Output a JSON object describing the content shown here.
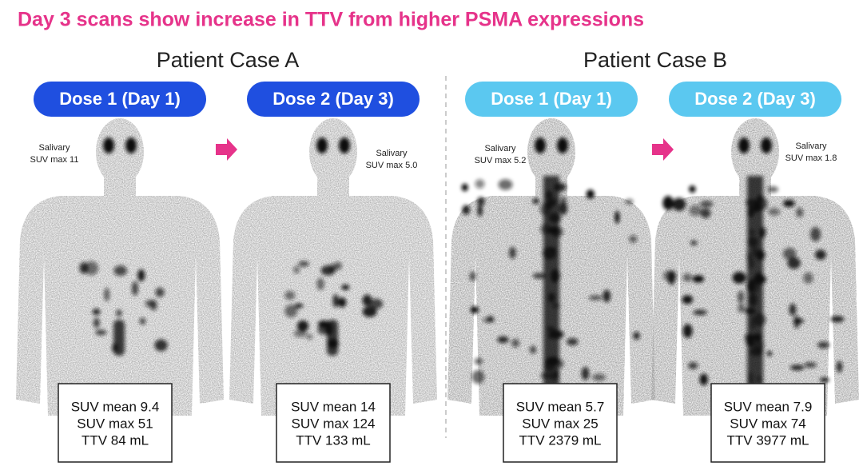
{
  "title": "Day 3 scans show increase in TTV from higher PSMA expressions",
  "cases": [
    {
      "name": "Patient Case A",
      "panels": [
        {
          "dose": "Dose 1 (Day 1)",
          "salivary": [
            "Salivary",
            "SUV max 11"
          ],
          "stats": [
            "SUV mean 9.4",
            "SUV max 51",
            "TTV 84 mL"
          ]
        },
        {
          "dose": "Dose 2 (Day 3)",
          "salivary": [
            "Salivary",
            "SUV max 5.0"
          ],
          "stats": [
            "SUV mean 14",
            "SUV max 124",
            "TTV 133 mL"
          ]
        }
      ]
    },
    {
      "name": "Patient Case B",
      "panels": [
        {
          "dose": "Dose 1 (Day 1)",
          "salivary": [
            "Salivary",
            "SUV max 5.2"
          ],
          "stats": [
            "SUV mean 5.7",
            "SUV max 25",
            "TTV 2379 mL"
          ]
        },
        {
          "dose": "Dose 2 (Day 3)",
          "salivary": [
            "Salivary",
            "SUV max 1.8"
          ],
          "stats": [
            "SUV mean 7.9",
            "SUV max 74",
            "TTV 3977 mL"
          ]
        }
      ]
    }
  ]
}
